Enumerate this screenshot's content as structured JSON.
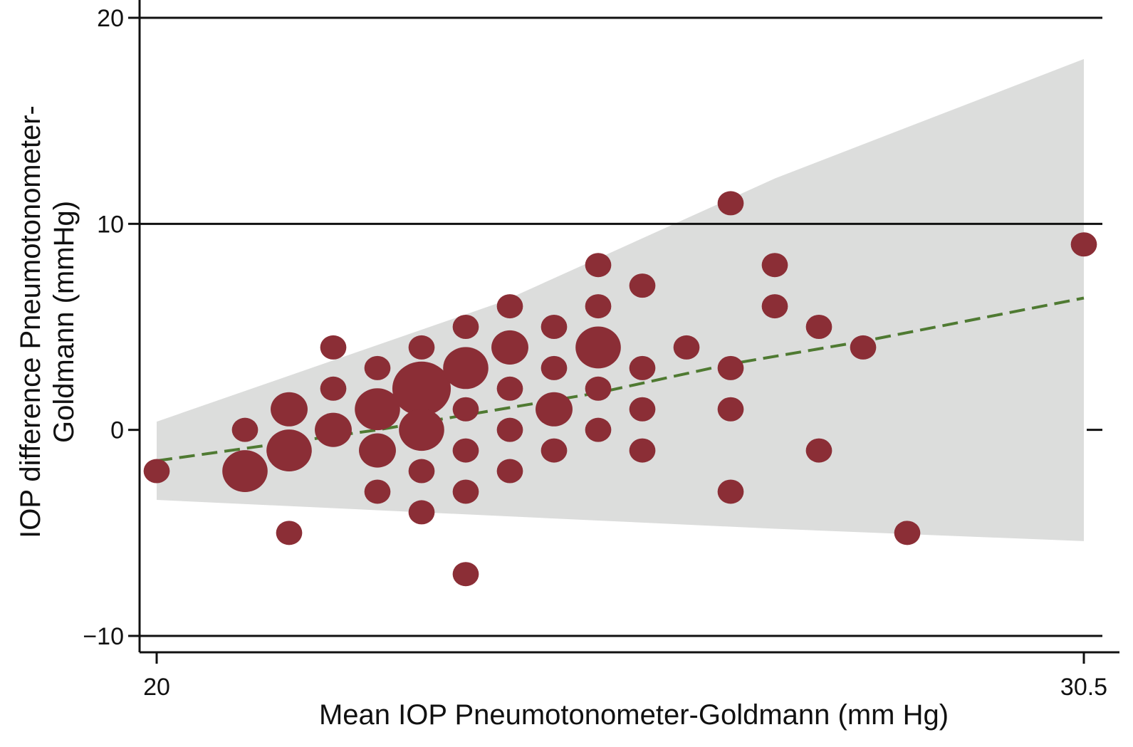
{
  "chart_data": {
    "type": "scatter",
    "xlabel": "Mean IOP Pneumotonometer-Goldmann (mm Hg)",
    "ylabel": "IOP difference Pneumotonometer-Goldmann (mmHg)",
    "ylabel_lines": [
      "IOP difference Pneumotonometer-",
      "Goldmann (mmHg)"
    ],
    "xlim": [
      20,
      30.5
    ],
    "ylim": [
      -10,
      20
    ],
    "x_ticks": [
      {
        "value": 20,
        "label": "20"
      },
      {
        "value": 30.5,
        "label": "30.5"
      }
    ],
    "y_ticks": [
      {
        "value": -10,
        "label": "−10"
      },
      {
        "value": 0,
        "label": "0"
      },
      {
        "value": 10,
        "label": "10"
      },
      {
        "value": 20,
        "label": "20"
      }
    ],
    "gridlines_y": [
      -10,
      10,
      20
    ],
    "colors": {
      "points": "#8b2e36",
      "band": "#dcdddc",
      "trend": "#4f7a32",
      "axis": "#111111"
    },
    "band": {
      "upper": [
        [
          20,
          0.4
        ],
        [
          23.9,
          6.2
        ],
        [
          27,
          12.2
        ],
        [
          30.5,
          18
        ]
      ],
      "lower": [
        [
          20,
          -3.4
        ],
        [
          25,
          -4.4
        ],
        [
          27,
          -4.8
        ],
        [
          30.5,
          -5.4
        ]
      ]
    },
    "trend": [
      [
        20,
        -1.5
      ],
      [
        22.5,
        0
      ],
      [
        25,
        1.8
      ],
      [
        26.5,
        3.2
      ],
      [
        28,
        4.3
      ],
      [
        30.5,
        6.4
      ]
    ],
    "points": [
      {
        "x": 20.0,
        "y": -2,
        "size": 1
      },
      {
        "x": 21.0,
        "y": 0,
        "size": 1
      },
      {
        "x": 21.0,
        "y": -2,
        "size": 3
      },
      {
        "x": 21.5,
        "y": 1,
        "size": 2
      },
      {
        "x": 21.5,
        "y": -1,
        "size": 3
      },
      {
        "x": 21.5,
        "y": -5,
        "size": 1
      },
      {
        "x": 22.0,
        "y": 4,
        "size": 1
      },
      {
        "x": 22.0,
        "y": 2,
        "size": 1
      },
      {
        "x": 22.0,
        "y": 0,
        "size": 2
      },
      {
        "x": 22.5,
        "y": 3,
        "size": 1
      },
      {
        "x": 22.5,
        "y": 1,
        "size": 3
      },
      {
        "x": 22.5,
        "y": -1,
        "size": 2
      },
      {
        "x": 22.5,
        "y": -3,
        "size": 1
      },
      {
        "x": 23.0,
        "y": 4,
        "size": 1
      },
      {
        "x": 23.0,
        "y": 2,
        "size": 5
      },
      {
        "x": 23.0,
        "y": 0,
        "size": 3
      },
      {
        "x": 23.0,
        "y": -2,
        "size": 1
      },
      {
        "x": 23.0,
        "y": -4,
        "size": 1
      },
      {
        "x": 23.5,
        "y": 5,
        "size": 1
      },
      {
        "x": 23.5,
        "y": 3,
        "size": 3
      },
      {
        "x": 23.5,
        "y": 1,
        "size": 1
      },
      {
        "x": 23.5,
        "y": -1,
        "size": 1
      },
      {
        "x": 23.5,
        "y": -3,
        "size": 1
      },
      {
        "x": 23.5,
        "y": -7,
        "size": 1
      },
      {
        "x": 24.0,
        "y": 6,
        "size": 1
      },
      {
        "x": 24.0,
        "y": 4,
        "size": 2
      },
      {
        "x": 24.0,
        "y": 2,
        "size": 1
      },
      {
        "x": 24.0,
        "y": 0,
        "size": 1
      },
      {
        "x": 24.0,
        "y": -2,
        "size": 1
      },
      {
        "x": 24.5,
        "y": 5,
        "size": 1
      },
      {
        "x": 24.5,
        "y": 3,
        "size": 1
      },
      {
        "x": 24.5,
        "y": 1,
        "size": 2
      },
      {
        "x": 24.5,
        "y": -1,
        "size": 1
      },
      {
        "x": 25.0,
        "y": 8,
        "size": 1
      },
      {
        "x": 25.0,
        "y": 6,
        "size": 1
      },
      {
        "x": 25.0,
        "y": 4,
        "size": 3
      },
      {
        "x": 25.0,
        "y": 2,
        "size": 1
      },
      {
        "x": 25.0,
        "y": 0,
        "size": 1
      },
      {
        "x": 25.5,
        "y": 7,
        "size": 1
      },
      {
        "x": 25.5,
        "y": 3,
        "size": 1
      },
      {
        "x": 25.5,
        "y": 1,
        "size": 1
      },
      {
        "x": 25.5,
        "y": -1,
        "size": 1
      },
      {
        "x": 26.0,
        "y": 4,
        "size": 1
      },
      {
        "x": 26.5,
        "y": 11,
        "size": 1
      },
      {
        "x": 26.5,
        "y": 3,
        "size": 1
      },
      {
        "x": 26.5,
        "y": 1,
        "size": 1
      },
      {
        "x": 26.5,
        "y": -3,
        "size": 1
      },
      {
        "x": 27.0,
        "y": 8,
        "size": 1
      },
      {
        "x": 27.0,
        "y": 6,
        "size": 1
      },
      {
        "x": 27.5,
        "y": 5,
        "size": 1
      },
      {
        "x": 27.5,
        "y": -1,
        "size": 1
      },
      {
        "x": 28.0,
        "y": 4,
        "size": 1
      },
      {
        "x": 28.5,
        "y": -5,
        "size": 1
      },
      {
        "x": 30.5,
        "y": 9,
        "size": 1
      }
    ]
  }
}
